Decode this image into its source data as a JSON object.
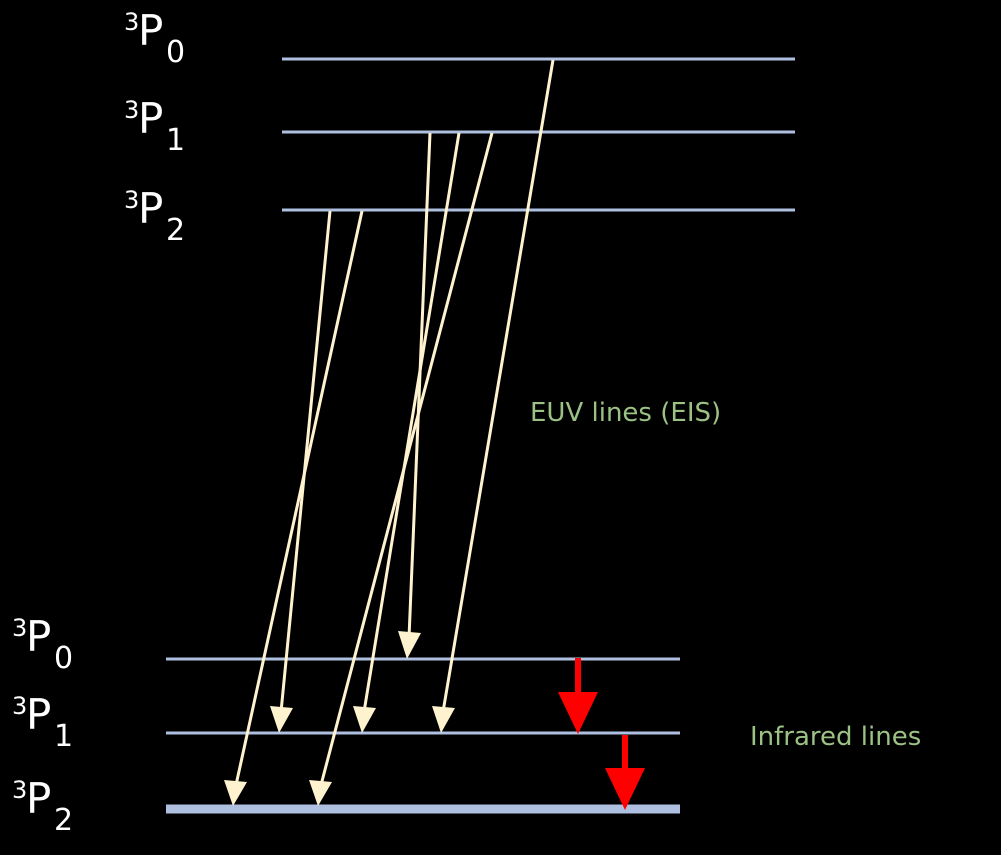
{
  "upper_levels": [
    {
      "sup": "3",
      "letter": "P",
      "sub": "0"
    },
    {
      "sup": "3",
      "letter": "P",
      "sub": "1"
    },
    {
      "sup": "3",
      "letter": "P",
      "sub": "2"
    }
  ],
  "lower_levels": [
    {
      "sup": "3",
      "letter": "P",
      "sub": "0"
    },
    {
      "sup": "3",
      "letter": "P",
      "sub": "1"
    },
    {
      "sup": "3",
      "letter": "P",
      "sub": "2"
    }
  ],
  "annotations": {
    "euv": "EUV lines (EIS)",
    "infrared": "Infrared lines"
  },
  "colors": {
    "background": "#000000",
    "level_line": "#aebfdf",
    "euv_arrow": "#fff3cf",
    "ir_arrow": "#ff0000",
    "annotation_text": "#9bc184",
    "label_text": "#ffffff"
  },
  "transitions": {
    "euv": [
      {
        "from": "upper.3P0",
        "to": "lower.3P1"
      },
      {
        "from": "upper.3P1",
        "to": "lower.3P0"
      },
      {
        "from": "upper.3P1",
        "to": "lower.3P1"
      },
      {
        "from": "upper.3P1",
        "to": "lower.3P2"
      },
      {
        "from": "upper.3P2",
        "to": "lower.3P1"
      },
      {
        "from": "upper.3P2",
        "to": "lower.3P2"
      }
    ],
    "infrared": [
      {
        "from": "lower.3P0",
        "to": "lower.3P1"
      },
      {
        "from": "lower.3P1",
        "to": "lower.3P2"
      }
    ]
  }
}
